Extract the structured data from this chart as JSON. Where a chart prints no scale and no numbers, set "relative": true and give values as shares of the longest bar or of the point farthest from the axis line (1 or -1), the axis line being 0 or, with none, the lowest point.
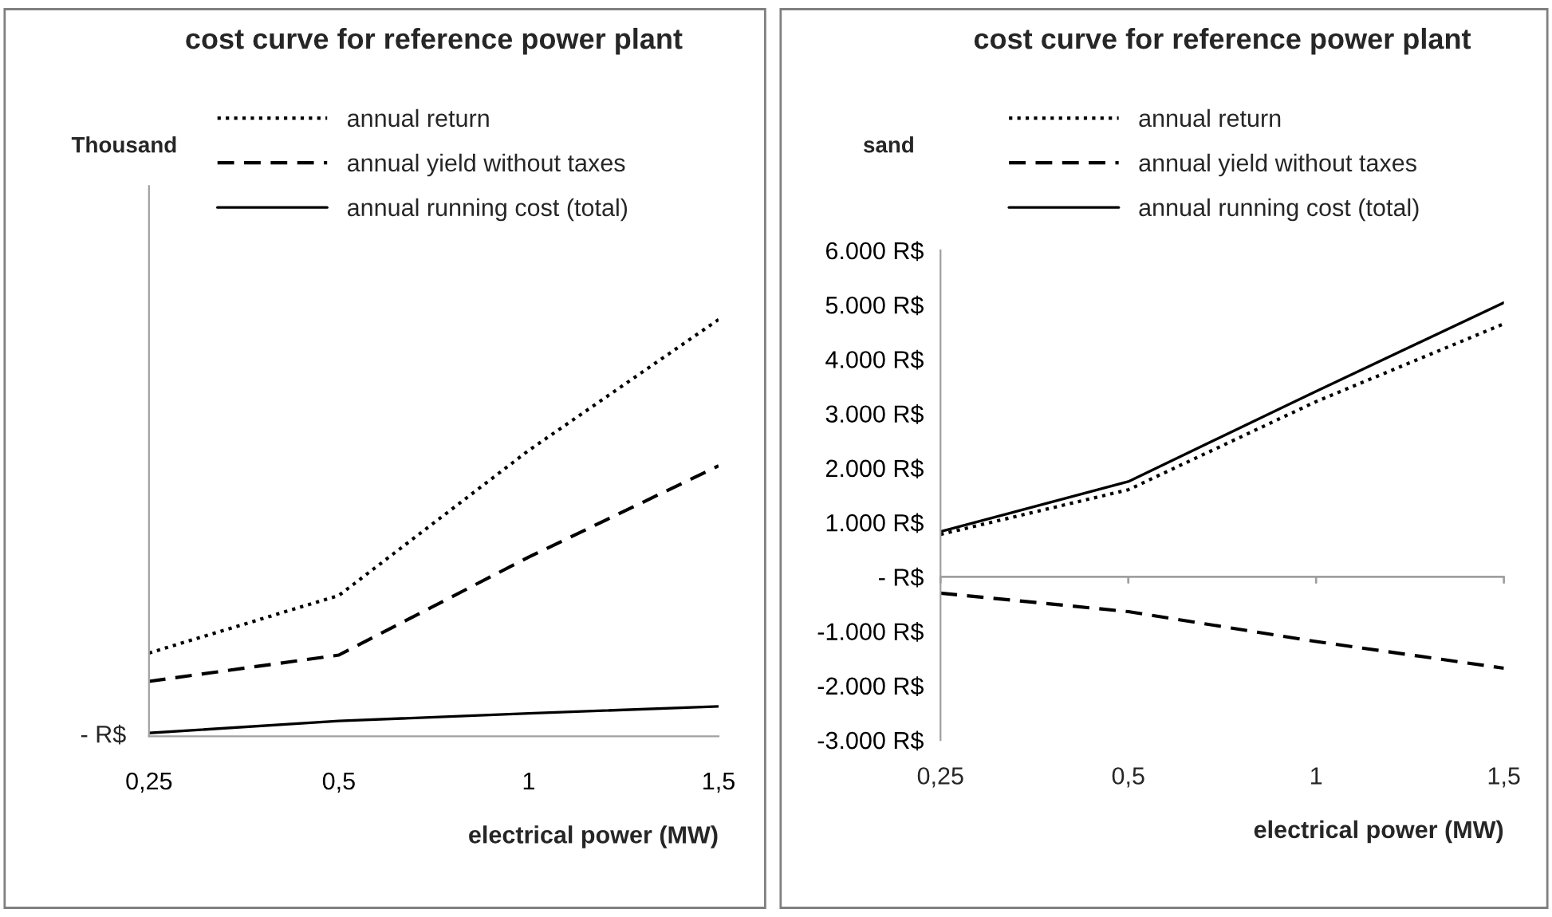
{
  "chart_data": [
    {
      "type": "line",
      "title": "cost curve for reference power plant",
      "ylabel": "Thousand",
      "xlabel": "electrical power (MW)",
      "relative": true,
      "categories": [
        "0,25",
        "0,5",
        "1",
        "1,5"
      ],
      "legend": "top",
      "grid": false,
      "marker": "none",
      "annotations": [
        "- R$"
      ],
      "series": [
        {
          "name": "annual return",
          "color": "#000000",
          "line_style": "dotted",
          "values": [
            0.2,
            0.338,
            0.686,
            1
          ]
        },
        {
          "name": "annual yield without taxes",
          "color": "#000000",
          "line_style": "dashed",
          "values": [
            0.132,
            0.195,
            0.43,
            0.649
          ]
        },
        {
          "name": "annual running cost (total)",
          "color": "#000000",
          "line_style": "solid",
          "values": [
            0.008,
            0.037,
            0.055,
            0.072
          ]
        }
      ]
    },
    {
      "type": "line",
      "title": "cost curve for reference power plant",
      "ylabel": "sand",
      "xlabel": "electrical power (MW)",
      "categories": [
        "0,25",
        "0,5",
        "1",
        "1,5"
      ],
      "legend": "top",
      "grid": false,
      "marker": "none",
      "ylim": [
        -3000,
        6000
      ],
      "ref_lines": [
        {
          "axis": "y",
          "value": 0,
          "color": "#a0a0a0"
        }
      ],
      "yticks": [
        {
          "value": -3000,
          "label": "-3.000 R$"
        },
        {
          "value": -2000,
          "label": "-2.000 R$"
        },
        {
          "value": -1000,
          "label": "-1.000 R$"
        },
        {
          "value": 0,
          "label": "- R$"
        },
        {
          "value": 1000,
          "label": "1.000 R$"
        },
        {
          "value": 2000,
          "label": "2.000 R$"
        },
        {
          "value": 3000,
          "label": "3.000 R$"
        },
        {
          "value": 4000,
          "label": "4.000 R$"
        },
        {
          "value": 5000,
          "label": "5.000 R$"
        },
        {
          "value": 6000,
          "label": "6.000 R$"
        }
      ],
      "series": [
        {
          "name": "annual return",
          "color": "#000000",
          "line_style": "dotted",
          "values": [
            780,
            1600,
            3220,
            4650
          ]
        },
        {
          "name": "annual yield without taxes",
          "color": "#000000",
          "line_style": "dashed",
          "values": [
            -300,
            -640,
            -1190,
            -1680
          ]
        },
        {
          "name": "annual running cost (total)",
          "color": "#000000",
          "line_style": "solid",
          "values": [
            830,
            1750,
            3410,
            5040
          ]
        }
      ]
    }
  ]
}
